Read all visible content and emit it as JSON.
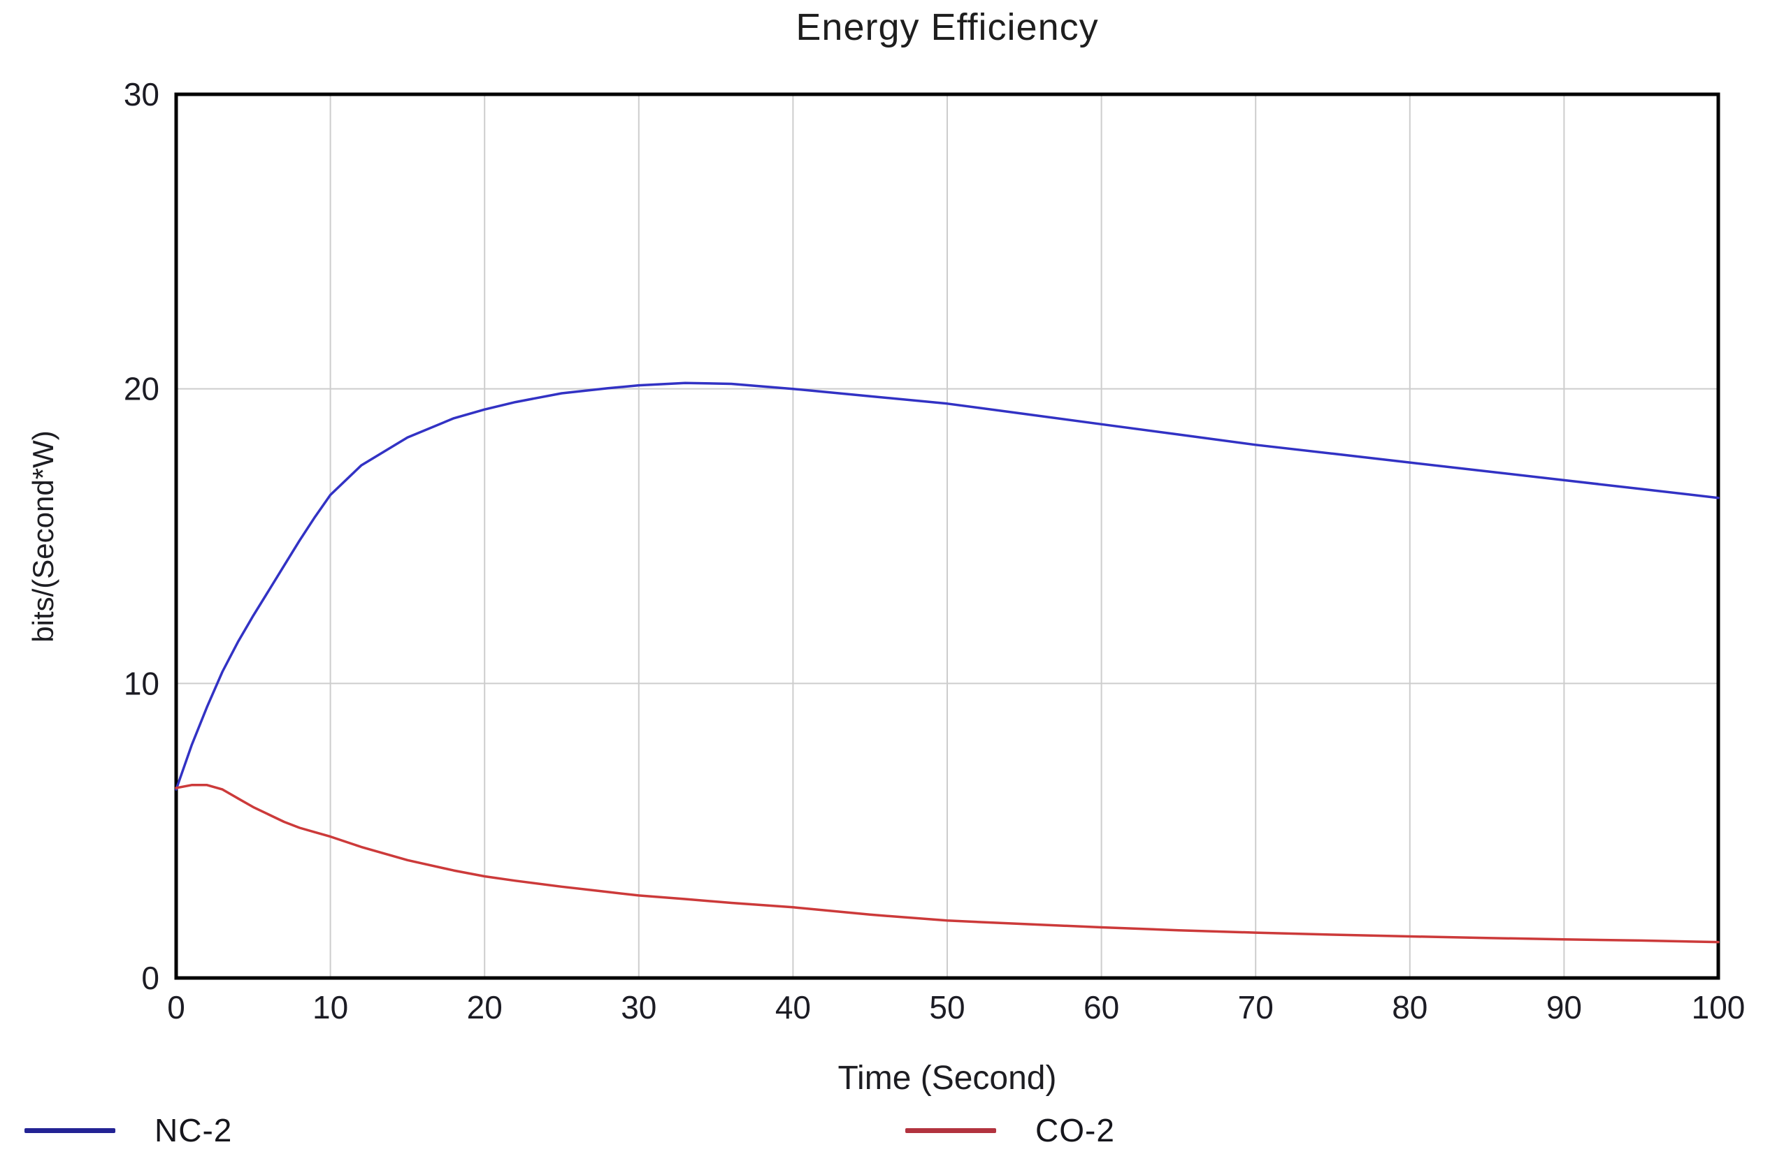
{
  "chart_data": {
    "type": "line",
    "title": "Energy Efficiency",
    "xlabel": "Time (Second)",
    "ylabel": "bits/(Second*W)",
    "xlim": [
      0,
      100
    ],
    "ylim": [
      0,
      30
    ],
    "x_ticks": [
      0,
      10,
      20,
      30,
      40,
      50,
      60,
      70,
      80,
      90,
      100
    ],
    "y_ticks": [
      0,
      10,
      20,
      30
    ],
    "grid": true,
    "legend_position": "bottom",
    "series": [
      {
        "name": "NC-2",
        "color": "#3232c4",
        "legend_color": "#232394",
        "points": [
          [
            0,
            6.4
          ],
          [
            1,
            7.9
          ],
          [
            2,
            9.2
          ],
          [
            3,
            10.4
          ],
          [
            4,
            11.4
          ],
          [
            5,
            12.3
          ],
          [
            6,
            13.15
          ],
          [
            7,
            14.0
          ],
          [
            8,
            14.85
          ],
          [
            9,
            15.65
          ],
          [
            10,
            16.4
          ],
          [
            12,
            17.4
          ],
          [
            15,
            18.35
          ],
          [
            18,
            19.0
          ],
          [
            20,
            19.3
          ],
          [
            22,
            19.55
          ],
          [
            25,
            19.85
          ],
          [
            28,
            20.02
          ],
          [
            30,
            20.12
          ],
          [
            33,
            20.2
          ],
          [
            36,
            20.17
          ],
          [
            40,
            20.0
          ],
          [
            45,
            19.75
          ],
          [
            50,
            19.5
          ],
          [
            55,
            19.15
          ],
          [
            60,
            18.8
          ],
          [
            65,
            18.45
          ],
          [
            70,
            18.1
          ],
          [
            75,
            17.8
          ],
          [
            80,
            17.5
          ],
          [
            85,
            17.2
          ],
          [
            90,
            16.9
          ],
          [
            95,
            16.6
          ],
          [
            100,
            16.3
          ]
        ]
      },
      {
        "name": "CO-2",
        "color": "#cc3a3a",
        "legend_color": "#b2333f",
        "points": [
          [
            0,
            6.45
          ],
          [
            1,
            6.55
          ],
          [
            2,
            6.55
          ],
          [
            3,
            6.4
          ],
          [
            4,
            6.1
          ],
          [
            5,
            5.8
          ],
          [
            6,
            5.55
          ],
          [
            7,
            5.3
          ],
          [
            8,
            5.1
          ],
          [
            9,
            4.95
          ],
          [
            10,
            4.8
          ],
          [
            12,
            4.45
          ],
          [
            15,
            4.0
          ],
          [
            18,
            3.65
          ],
          [
            20,
            3.45
          ],
          [
            22,
            3.3
          ],
          [
            25,
            3.1
          ],
          [
            28,
            2.92
          ],
          [
            30,
            2.8
          ],
          [
            33,
            2.68
          ],
          [
            36,
            2.55
          ],
          [
            40,
            2.4
          ],
          [
            45,
            2.15
          ],
          [
            50,
            1.95
          ],
          [
            55,
            1.83
          ],
          [
            60,
            1.72
          ],
          [
            65,
            1.62
          ],
          [
            70,
            1.54
          ],
          [
            75,
            1.47
          ],
          [
            80,
            1.41
          ],
          [
            85,
            1.36
          ],
          [
            90,
            1.31
          ],
          [
            95,
            1.27
          ],
          [
            100,
            1.22
          ]
        ]
      }
    ]
  },
  "colors": {
    "background": "#ffffff",
    "text": "#1d1d22",
    "grid": "#cdcdcd",
    "frame": "#000000"
  }
}
